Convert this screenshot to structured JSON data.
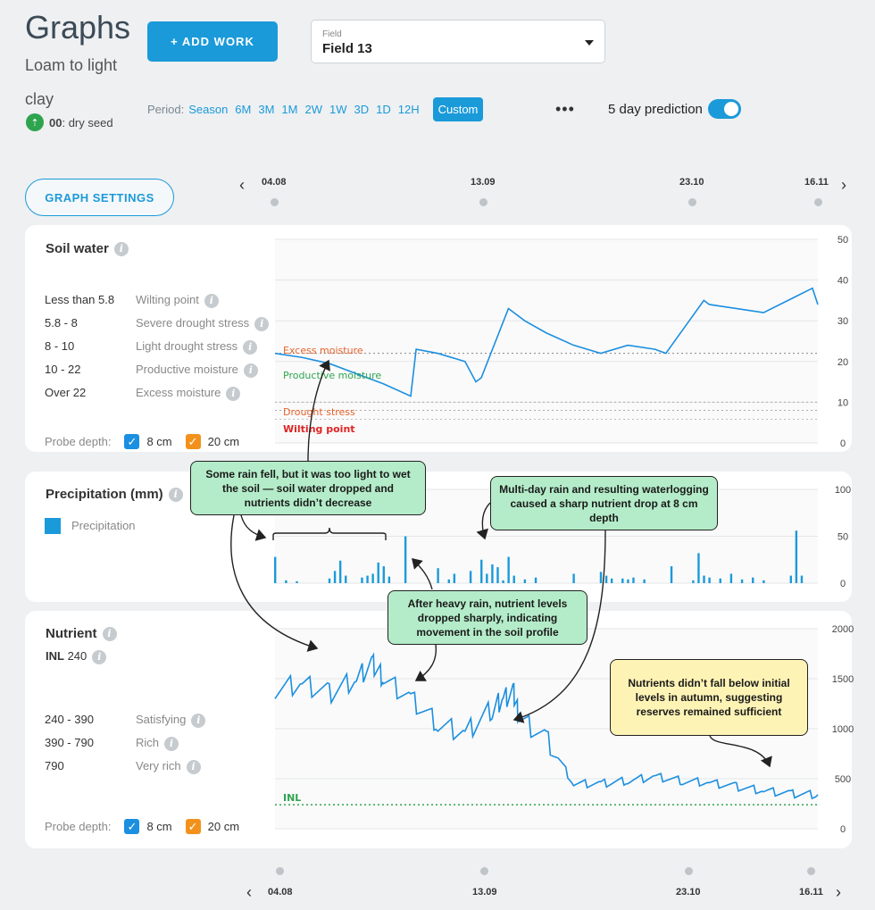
{
  "header": {
    "title": "Graphs",
    "subtitle": "Loam to light clay",
    "growth_stage_code": "00",
    "growth_stage_label": ": dry seed",
    "add_work_label": "+ ADD WORK"
  },
  "field_select": {
    "label": "Field",
    "value": "Field 13"
  },
  "period": {
    "label": "Period:",
    "options": [
      "Season",
      "6M",
      "3M",
      "1M",
      "2W",
      "1W",
      "3D",
      "1D",
      "12H"
    ],
    "custom_label": "Custom",
    "more_label": "•••"
  },
  "prediction": {
    "label": "5 day prediction",
    "enabled": true
  },
  "graph_settings_label": "GRAPH SETTINGS",
  "timeline": {
    "dates": [
      "04.08",
      "13.09",
      "23.10",
      "16.11"
    ]
  },
  "soil_water": {
    "title": "Soil water",
    "legend": [
      {
        "range": "Less than 5.8",
        "label": "Wilting point"
      },
      {
        "range": "5.8 - 8",
        "label": "Severe drought stress"
      },
      {
        "range": "8 - 10",
        "label": "Light drought stress"
      },
      {
        "range": "10 - 22",
        "label": "Productive moisture"
      },
      {
        "range": "Over 22",
        "label": "Excess moisture"
      }
    ],
    "probe_label": "Probe depth:",
    "probes": [
      "8 cm",
      "20 cm"
    ],
    "zone_labels": {
      "excess": "Excess moisture",
      "productive": "Productive moisture",
      "drought": "Drought stress",
      "wilting": "Wilting point"
    },
    "colors": {
      "line": "#1b8fe0",
      "excess": "#e8622c",
      "productive": "#2ea44f",
      "drought": "#e8622c",
      "wilting": "#e02424"
    }
  },
  "precipitation": {
    "title": "Precipitation (mm)",
    "legend_label": "Precipitation",
    "color": "#1b9ad9"
  },
  "nutrient": {
    "title": "Nutrient",
    "inl_label": "INL",
    "inl_value": "240",
    "legend": [
      {
        "range": "240 - 390",
        "label": "Satisfying"
      },
      {
        "range": "390 - 790",
        "label": "Rich"
      },
      {
        "range": "790",
        "label": "Very rich"
      }
    ],
    "probe_label": "Probe depth:",
    "probes": [
      "8 cm",
      "20 cm"
    ],
    "inl_line_label": "INL"
  },
  "callouts": {
    "light_rain": "Some rain fell, but it was too light to wet the soil — soil water dropped and nutrients didn’t decrease",
    "waterlogging": "Multi-day rain and resulting waterlogging caused a sharp nutrient drop at 8 cm depth",
    "heavy_rain": "After heavy rain, nutrient levels dropped sharply, indicating movement in the soil profile",
    "autumn": "Nutrients didn’t fall below initial levels in autumn, suggesting reserves remained sufficient"
  },
  "chart_data": [
    {
      "type": "line",
      "title": "Soil water",
      "ylim": [
        0,
        50
      ],
      "yticks": [
        "0",
        "10",
        "20",
        "30",
        "40",
        "50"
      ],
      "thresholds": [
        22,
        10,
        8,
        5.8
      ],
      "x": [
        0,
        0.05,
        0.1,
        0.15,
        0.2,
        0.25,
        0.26,
        0.3,
        0.35,
        0.37,
        0.38,
        0.43,
        0.46,
        0.5,
        0.55,
        0.6,
        0.65,
        0.7,
        0.72,
        0.79,
        0.8,
        0.9,
        0.99,
        1.0
      ],
      "values": [
        22,
        21,
        19.5,
        17,
        14.5,
        11.5,
        23,
        22,
        20,
        15,
        16,
        33,
        30,
        27,
        24,
        22,
        24,
        23,
        22,
        35,
        34,
        32,
        38,
        34
      ]
    },
    {
      "type": "bar",
      "title": "Precipitation (mm)",
      "ylim": [
        0,
        100
      ],
      "yticks": [
        "0",
        "50",
        "100"
      ],
      "x": [
        0.0,
        0.02,
        0.04,
        0.1,
        0.11,
        0.12,
        0.13,
        0.16,
        0.17,
        0.18,
        0.19,
        0.2,
        0.21,
        0.24,
        0.3,
        0.32,
        0.33,
        0.36,
        0.38,
        0.39,
        0.4,
        0.41,
        0.42,
        0.43,
        0.44,
        0.46,
        0.48,
        0.55,
        0.6,
        0.61,
        0.62,
        0.64,
        0.65,
        0.66,
        0.68,
        0.73,
        0.77,
        0.78,
        0.79,
        0.8,
        0.82,
        0.84,
        0.86,
        0.88,
        0.9,
        0.95,
        0.96,
        0.97
      ],
      "values": [
        28,
        3,
        2,
        5,
        13,
        24,
        8,
        6,
        8,
        10,
        22,
        18,
        7,
        50,
        16,
        4,
        10,
        13,
        25,
        10,
        20,
        17,
        3,
        28,
        8,
        4,
        6,
        10,
        12,
        8,
        5,
        5,
        4,
        6,
        4,
        18,
        3,
        32,
        8,
        6,
        5,
        10,
        4,
        6,
        3,
        8,
        56,
        8
      ]
    },
    {
      "type": "line",
      "title": "Nutrient",
      "ylim": [
        0,
        2000
      ],
      "yticks": [
        "0",
        "500",
        "1000",
        "1500",
        "2000"
      ],
      "inl": 240,
      "x": [
        0,
        0.05,
        0.1,
        0.15,
        0.18,
        0.2,
        0.25,
        0.3,
        0.35,
        0.4,
        0.42,
        0.44,
        0.45,
        0.5,
        0.55,
        0.6,
        0.65,
        0.7,
        0.75,
        0.8,
        0.85,
        0.9,
        0.95,
        1.0
      ],
      "values": [
        1400,
        1450,
        1350,
        1500,
        1650,
        1500,
        1300,
        1050,
        950,
        1200,
        1300,
        1350,
        1100,
        900,
        450,
        450,
        480,
        520,
        480,
        460,
        420,
        380,
        350,
        340
      ]
    }
  ]
}
